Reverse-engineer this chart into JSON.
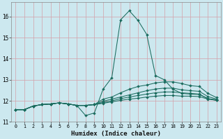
{
  "xlabel": "Humidex (Indice chaleur)",
  "bg_color": "#cce8ef",
  "grid_color": "#b0d4dc",
  "line_color": "#1a6b5e",
  "xlim": [
    -0.5,
    23.5
  ],
  "ylim": [
    11,
    16.7
  ],
  "yticks": [
    11,
    12,
    13,
    14,
    15,
    16
  ],
  "xticks": [
    0,
    1,
    2,
    3,
    4,
    5,
    6,
    7,
    8,
    9,
    10,
    11,
    12,
    13,
    14,
    15,
    16,
    17,
    18,
    19,
    20,
    21,
    22,
    23
  ],
  "curves": [
    {
      "x": [
        0,
        1,
        2,
        3,
        4,
        5,
        6,
        7,
        8,
        9,
        10,
        11,
        12,
        13,
        14,
        15,
        16,
        17,
        18,
        19,
        20,
        21,
        22,
        23
      ],
      "y": [
        11.58,
        11.58,
        11.75,
        11.82,
        11.85,
        11.9,
        11.85,
        11.78,
        11.3,
        11.42,
        12.55,
        13.1,
        15.85,
        16.28,
        15.82,
        15.15,
        13.2,
        13.0,
        12.55,
        12.35,
        12.32,
        12.3,
        12.1,
        12.02
      ]
    },
    {
      "x": [
        0,
        1,
        2,
        3,
        4,
        5,
        6,
        7,
        8,
        9,
        10,
        11,
        12,
        13,
        14,
        15,
        16,
        17,
        18,
        19,
        20,
        21,
        22,
        23
      ],
      "y": [
        11.58,
        11.58,
        11.75,
        11.82,
        11.85,
        11.9,
        11.85,
        11.78,
        11.78,
        11.82,
        11.88,
        11.95,
        12.02,
        12.08,
        12.12,
        12.18,
        12.22,
        12.25,
        12.25,
        12.22,
        12.22,
        12.2,
        12.08,
        12.02
      ]
    },
    {
      "x": [
        0,
        1,
        2,
        3,
        4,
        5,
        6,
        7,
        8,
        9,
        10,
        11,
        12,
        13,
        14,
        15,
        16,
        17,
        18,
        19,
        20,
        21,
        22,
        23
      ],
      "y": [
        11.58,
        11.58,
        11.75,
        11.82,
        11.85,
        11.9,
        11.85,
        11.78,
        11.78,
        11.82,
        11.92,
        12.0,
        12.1,
        12.18,
        12.25,
        12.32,
        12.38,
        12.42,
        12.42,
        12.38,
        12.35,
        12.32,
        12.1,
        12.05
      ]
    },
    {
      "x": [
        0,
        1,
        2,
        3,
        4,
        5,
        6,
        7,
        8,
        9,
        10,
        11,
        12,
        13,
        14,
        15,
        16,
        17,
        18,
        19,
        20,
        21,
        22,
        23
      ],
      "y": [
        11.58,
        11.58,
        11.75,
        11.82,
        11.85,
        11.9,
        11.85,
        11.78,
        11.78,
        11.82,
        11.98,
        12.08,
        12.18,
        12.28,
        12.38,
        12.48,
        12.56,
        12.6,
        12.6,
        12.52,
        12.48,
        12.45,
        12.2,
        12.08
      ]
    },
    {
      "x": [
        0,
        1,
        2,
        3,
        4,
        5,
        6,
        7,
        8,
        9,
        10,
        11,
        12,
        13,
        14,
        15,
        16,
        17,
        18,
        19,
        20,
        21,
        22,
        23
      ],
      "y": [
        11.58,
        11.58,
        11.75,
        11.82,
        11.85,
        11.9,
        11.85,
        11.78,
        11.78,
        11.82,
        12.08,
        12.18,
        12.38,
        12.55,
        12.68,
        12.75,
        12.85,
        12.9,
        12.9,
        12.82,
        12.72,
        12.68,
        12.35,
        12.15
      ]
    }
  ]
}
